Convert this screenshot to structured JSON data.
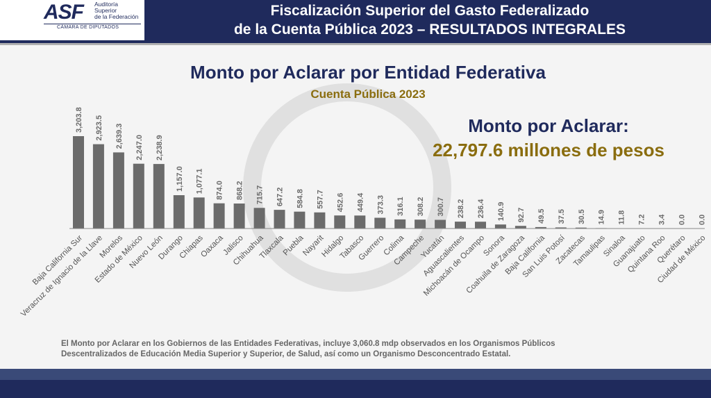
{
  "header": {
    "logo_text": "ASF",
    "logo_sub": [
      "Auditoría",
      "Superior",
      "de la Federación"
    ],
    "logo_chamber": "CÁMARA DE DIPUTADOS",
    "title_line1": "Fiscalización Superior del Gasto Federalizado",
    "title_line2": "de la Cuenta Pública 2023 – RESULTADOS INTEGRALES"
  },
  "summary": {
    "label": "Monto por Aclarar:",
    "value": "22,797.6 millones de pesos"
  },
  "footnote": {
    "line1": "El Monto por Aclarar en los Gobiernos de las Entidades Federativas, incluye 3,060.8 mdp observados en los Organismos Públicos",
    "line2": "Descentralizados de Educación Media Superior y Superior, de Salud, así como un Organismo Desconcentrado Estatal."
  },
  "chart_data": {
    "type": "bar",
    "title": "Monto por Aclarar por Entidad Federativa",
    "subtitle": "Cuenta Pública 2023",
    "categories": [
      "Baja California Sur",
      "Veracruz de Ignacio de la Llave",
      "Morelos",
      "Estado de México",
      "Nuevo León",
      "Durango",
      "Chiapas",
      "Oaxaca",
      "Jalisco",
      "Chihuahua",
      "Tlaxcala",
      "Puebla",
      "Nayarit",
      "Hidalgo",
      "Tabasco",
      "Guerrero",
      "Colima",
      "Campeche",
      "Yucatán",
      "Aguascalientes",
      "Michoacán de Ocampo",
      "Sonora",
      "Coahuila de Zaragoza",
      "Baja California",
      "San Luis Potosí",
      "Zacatecas",
      "Tamaulipas",
      "Sinaloa",
      "Guanajuato",
      "Quintana Roo",
      "Querétaro",
      "Ciudad de México"
    ],
    "values": [
      3203.8,
      2923.5,
      2639.3,
      2247.0,
      2238.9,
      1157.0,
      1077.1,
      874.0,
      868.2,
      715.7,
      647.2,
      584.8,
      557.7,
      452.6,
      449.4,
      373.3,
      316.1,
      308.2,
      300.7,
      238.2,
      236.4,
      140.9,
      92.7,
      49.5,
      37.5,
      30.5,
      14.9,
      11.8,
      7.2,
      3.4,
      0.0,
      0.0
    ],
    "value_labels": [
      "3,203.8",
      "2,923.5",
      "2,639.3",
      "2,247.0",
      "2,238.9",
      "1,157.0",
      "1,077.1",
      "874.0",
      "868.2",
      "715.7",
      "647.2",
      "584.8",
      "557.7",
      "452.6",
      "449.4",
      "373.3",
      "316.1",
      "308.2",
      "300.7",
      "238.2",
      "236.4",
      "140.9",
      "92.7",
      "49.5",
      "37.5",
      "30.5",
      "14.9",
      "11.8",
      "7.2",
      "3.4",
      "0.0",
      "0.0"
    ],
    "ylim": [
      0,
      3300
    ],
    "grid": false,
    "bar_color": "#6b6b6b",
    "label_color": "#6b6b6b"
  }
}
